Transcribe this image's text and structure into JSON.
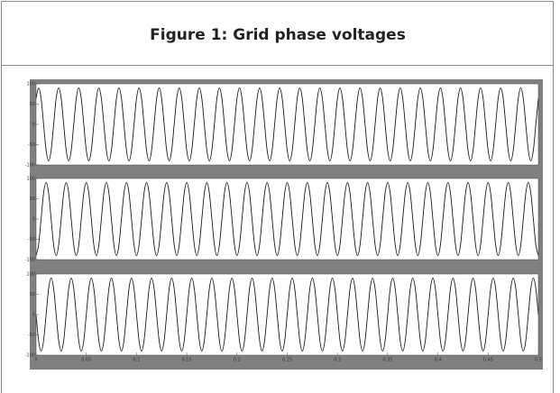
{
  "chart_data": {
    "type": "line",
    "title": "Figure 1: Grid phase voltages",
    "x": [
      0,
      0.0025,
      0.005,
      0.0075,
      0.01,
      0.0125,
      0.015,
      0.0175,
      0.02,
      0.0225,
      0.025,
      0.0275,
      0.03,
      0.0325,
      0.035,
      0.0375,
      0.04,
      0.0425,
      0.045,
      0.0475,
      0.05,
      0.0525,
      0.055,
      0.0575,
      0.06,
      0.0625,
      0.065,
      0.0675,
      0.07,
      0.0725,
      0.075,
      0.0775,
      0.08,
      0.0825,
      0.085,
      0.0875,
      0.09,
      0.0925,
      0.095,
      0.0975,
      0.1,
      0.1025,
      0.105,
      0.1075,
      0.11,
      0.1125,
      0.115,
      0.1175,
      0.12,
      0.1225,
      0.125,
      0.1275,
      0.13,
      0.1325,
      0.135,
      0.1375,
      0.14,
      0.1425,
      0.145,
      0.1475,
      0.15,
      0.1525,
      0.155,
      0.1575,
      0.16,
      0.1625,
      0.165,
      0.1675,
      0.17,
      0.1725,
      0.175,
      0.1775,
      0.18,
      0.1825,
      0.185,
      0.1875,
      0.19,
      0.1925,
      0.195,
      0.1975,
      0.2,
      0.2025,
      0.205,
      0.2075,
      0.21,
      0.2125,
      0.215,
      0.2175,
      0.22,
      0.2225,
      0.225,
      0.2275,
      0.23,
      0.2325,
      0.235,
      0.2375,
      0.24,
      0.2425,
      0.245,
      0.2475,
      0.25,
      0.2525,
      0.255,
      0.2575,
      0.26,
      0.2625,
      0.265,
      0.2675,
      0.27,
      0.2725,
      0.275,
      0.2775,
      0.28,
      0.2825,
      0.285,
      0.2875,
      0.29,
      0.2925,
      0.295,
      0.2975,
      0.3,
      0.3025,
      0.305,
      0.3075,
      0.31,
      0.3125,
      0.315,
      0.3175,
      0.32,
      0.3225,
      0.325,
      0.3275,
      0.33,
      0.3325,
      0.335,
      0.3375,
      0.34,
      0.3425,
      0.345,
      0.3475,
      0.35,
      0.3525,
      0.355,
      0.3575,
      0.36,
      0.3625,
      0.365,
      0.3675,
      0.37,
      0.3725,
      0.375,
      0.3775,
      0.38,
      0.3825,
      0.385,
      0.3875,
      0.39,
      0.3925,
      0.395,
      0.3975,
      0.4,
      0.4025,
      0.405,
      0.4075,
      0.41,
      0.4125,
      0.415,
      0.4175,
      0.42,
      0.4225,
      0.425,
      0.4275,
      0.43,
      0.4325,
      0.435,
      0.4375,
      0.44,
      0.4425,
      0.445,
      0.4475,
      0.45,
      0.4525,
      0.455,
      0.4575,
      0.46,
      0.4625,
      0.465,
      0.4675,
      0.47,
      0.4725,
      0.475,
      0.4775,
      0.48,
      0.4825,
      0.485,
      0.4875,
      0.49,
      0.4925,
      0.495,
      0.4975,
      0.5
    ],
    "series": [
      {
        "color": "#1a1a1a",
        "values": [
          64,
          90,
          64,
          0,
          -64,
          -90,
          -64,
          0,
          64,
          90,
          64,
          0,
          -64,
          -90,
          -64,
          0,
          64,
          90,
          64,
          0,
          -64,
          -90,
          -64,
          0,
          64,
          90,
          64,
          0,
          -64,
          -90,
          -64,
          0,
          64,
          90,
          64,
          0,
          -64,
          -90,
          -64,
          0,
          64,
          90,
          64,
          0,
          -64,
          -90,
          -64,
          0,
          64,
          90,
          64,
          0,
          -64,
          -90,
          -64,
          0,
          64,
          90,
          64,
          0,
          -64,
          -90,
          -64,
          0,
          64,
          90,
          64,
          0,
          -64,
          -90,
          -64,
          0,
          64,
          90,
          64,
          0,
          -64,
          -90,
          -64,
          0,
          64,
          90,
          64,
          0,
          -64,
          -90,
          -64,
          0,
          64,
          90,
          64,
          0,
          -64,
          -90,
          -64,
          0,
          64,
          90,
          64,
          0,
          -64,
          -90,
          -64,
          0,
          64,
          90,
          64,
          0,
          -64,
          -90,
          -64,
          0,
          64,
          90,
          64,
          0,
          -64,
          -90,
          -64,
          0,
          64,
          90,
          64,
          0,
          -64,
          -90,
          -64,
          0,
          64,
          90,
          64,
          0,
          -64,
          -90,
          -64,
          0,
          64,
          90,
          64,
          0,
          -64,
          -90,
          -64,
          0,
          64,
          90,
          64,
          0,
          -64,
          -90,
          -64,
          0,
          64,
          90,
          64,
          0,
          -64,
          -90,
          -64,
          0,
          64,
          90,
          64,
          0,
          -64,
          -90,
          -64,
          0,
          64,
          90,
          64,
          0,
          -64,
          -90,
          -64,
          0,
          64,
          90,
          64,
          0,
          -64,
          -90,
          -64,
          0,
          64,
          90,
          64,
          0,
          -64,
          -90,
          -64,
          0,
          64,
          90,
          64,
          0,
          -64,
          -90,
          -64,
          0,
          64
        ]
      },
      {
        "color": "#1a1a1a",
        "values": [
          -90,
          -64,
          0,
          64,
          90,
          64,
          0,
          -64,
          -90,
          -64,
          0,
          64,
          90,
          64,
          0,
          -64,
          -90,
          -64,
          0,
          64,
          90,
          64,
          0,
          -64,
          -90,
          -64,
          0,
          64,
          90,
          64,
          0,
          -64,
          -90,
          -64,
          0,
          64,
          90,
          64,
          0,
          -64,
          -90,
          -64,
          0,
          64,
          90,
          64,
          0,
          -64,
          -90,
          -64,
          0,
          64,
          90,
          64,
          0,
          -64,
          -90,
          -64,
          0,
          64,
          90,
          64,
          0,
          -64,
          -90,
          -64,
          0,
          64,
          90,
          64,
          0,
          -64,
          -90,
          -64,
          0,
          64,
          90,
          64,
          0,
          -64,
          -90,
          -64,
          0,
          64,
          90,
          64,
          0,
          -64,
          -90,
          -64,
          0,
          64,
          90,
          64,
          0,
          -64,
          -90,
          -64,
          0,
          64,
          90,
          64,
          0,
          -64,
          -90,
          -64,
          0,
          64,
          90,
          64,
          0,
          -64,
          -90,
          -64,
          0,
          64,
          90,
          64,
          0,
          -64,
          -90,
          -64,
          0,
          64,
          90,
          64,
          0,
          -64,
          -90,
          -64,
          0,
          64,
          90,
          64,
          0,
          -64,
          -90,
          -64,
          0,
          64,
          90,
          64,
          0,
          -64,
          -90,
          -64,
          0,
          64,
          90,
          64,
          0,
          -64,
          -90,
          -64,
          0,
          64,
          90,
          64,
          0,
          -64,
          -90,
          -64,
          0,
          64,
          90,
          64,
          0,
          -64,
          -90,
          -64,
          0,
          64,
          90,
          64,
          0,
          -64,
          -90,
          -64,
          0,
          64,
          90,
          64,
          0,
          -64,
          -90,
          -64,
          0,
          64,
          90,
          64,
          0,
          -64,
          -90,
          -64,
          0,
          64,
          90,
          64,
          0,
          -64,
          -90
        ]
      },
      {
        "color": "#1a1a1a",
        "values": [
          0,
          -64,
          -90,
          -64,
          0,
          64,
          90,
          64,
          0,
          -64,
          -90,
          -64,
          0,
          64,
          90,
          64,
          0,
          -64,
          -90,
          -64,
          0,
          64,
          90,
          64,
          0,
          -64,
          -90,
          -64,
          0,
          64,
          90,
          64,
          0,
          -64,
          -90,
          -64,
          0,
          64,
          90,
          64,
          0,
          -64,
          -90,
          -64,
          0,
          64,
          90,
          64,
          0,
          -64,
          -90,
          -64,
          0,
          64,
          90,
          64,
          0,
          -64,
          -90,
          -64,
          0,
          64,
          90,
          64,
          0,
          -64,
          -90,
          -64,
          0,
          64,
          90,
          64,
          0,
          -64,
          -90,
          -64,
          0,
          64,
          90,
          64,
          0,
          -64,
          -90,
          -64,
          0,
          64,
          90,
          64,
          0,
          -64,
          -90,
          -64,
          0,
          64,
          90,
          64,
          0,
          -64,
          -90,
          -64,
          0,
          64,
          90,
          64,
          0,
          -64,
          -90,
          -64,
          0,
          64,
          90,
          64,
          0,
          -64,
          -90,
          -64,
          0,
          64,
          90,
          64,
          0,
          -64,
          -90,
          -64,
          0,
          64,
          90,
          64,
          0,
          -64,
          -90,
          -64,
          0,
          64,
          90,
          64,
          0,
          -64,
          -90,
          -64,
          0,
          64,
          90,
          64,
          0,
          -64,
          -90,
          -64,
          0,
          64,
          90,
          64,
          0,
          -64,
          -90,
          -64,
          0,
          64,
          90,
          64,
          0,
          -64,
          -90,
          -64,
          0,
          64,
          90,
          64,
          0,
          -64,
          -90,
          -64,
          0,
          64,
          90,
          64,
          0,
          -64,
          -90,
          -64,
          0,
          64,
          90,
          64,
          0,
          -64,
          -90,
          -64,
          0,
          64,
          90,
          64,
          0,
          -64,
          -90,
          -64,
          0,
          64,
          90,
          64,
          0
        ]
      }
    ],
    "xlim": [
      0,
      0.5
    ],
    "xticks": [
      0,
      0.05,
      0.1,
      0.15,
      0.2,
      0.25,
      0.3,
      0.35,
      0.4,
      0.45,
      0.5
    ],
    "ylim": [
      -100,
      100
    ],
    "yticks": [
      100,
      50,
      0,
      -50,
      -100
    ]
  }
}
